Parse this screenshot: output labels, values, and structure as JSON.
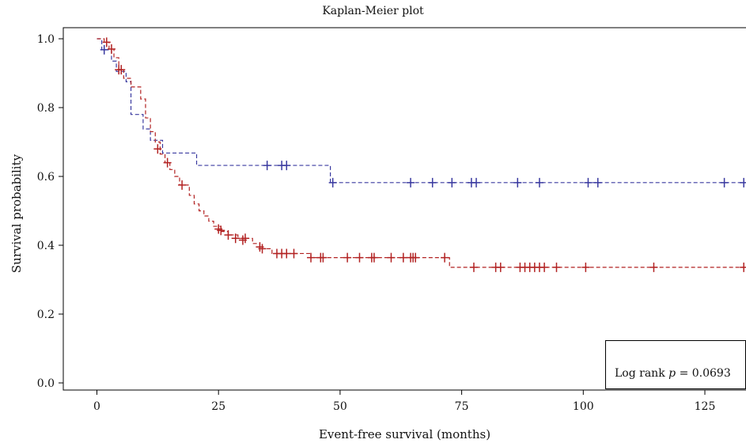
{
  "chart_data": {
    "type": "line",
    "title": "Kaplan-Meier plot",
    "xlabel": "Event-free survival (months)",
    "ylabel": "Survival probability",
    "xlim": [
      -5,
      133
    ],
    "ylim": [
      -0.02,
      1.03
    ],
    "x_ticks": [
      0,
      25,
      50,
      75,
      100,
      125
    ],
    "x_tick_labels": [
      "0",
      "25",
      "50",
      "75",
      "100",
      "125"
    ],
    "y_ticks": [
      0.0,
      0.2,
      0.4,
      0.6,
      0.8,
      1.0
    ],
    "y_tick_labels": [
      "0.0",
      "0.2",
      "0.4",
      "0.6",
      "0.8",
      "1.0"
    ],
    "grid": false,
    "series": [
      {
        "color": "#3a3aa0",
        "line_style": "dashed",
        "steps": [
          [
            0,
            1.0
          ],
          [
            1,
            0.968
          ],
          [
            3,
            0.935
          ],
          [
            4,
            0.905
          ],
          [
            6,
            0.875
          ],
          [
            7,
            0.78
          ],
          [
            9.5,
            0.738
          ],
          [
            11,
            0.705
          ],
          [
            13.5,
            0.668
          ],
          [
            20.5,
            0.632
          ],
          [
            48,
            0.582
          ],
          [
            133,
            0.582
          ]
        ],
        "censored": [
          [
            1.5,
            0.968
          ],
          [
            35,
            0.632
          ],
          [
            38,
            0.632
          ],
          [
            39,
            0.632
          ],
          [
            48.5,
            0.582
          ],
          [
            64.5,
            0.582
          ],
          [
            69,
            0.582
          ],
          [
            73,
            0.582
          ],
          [
            77,
            0.582
          ],
          [
            78,
            0.582
          ],
          [
            86.5,
            0.582
          ],
          [
            91,
            0.582
          ],
          [
            101,
            0.582
          ],
          [
            103,
            0.582
          ],
          [
            129,
            0.582
          ],
          [
            133,
            0.582
          ]
        ]
      },
      {
        "color": "#b22222",
        "line_style": "dashed",
        "steps": [
          [
            0,
            1.0
          ],
          [
            1.5,
            0.99
          ],
          [
            2.5,
            0.97
          ],
          [
            3.5,
            0.945
          ],
          [
            4.5,
            0.91
          ],
          [
            5.5,
            0.885
          ],
          [
            7,
            0.86
          ],
          [
            9,
            0.825
          ],
          [
            10,
            0.77
          ],
          [
            11,
            0.73
          ],
          [
            12,
            0.7
          ],
          [
            13,
            0.665
          ],
          [
            14,
            0.64
          ],
          [
            15,
            0.62
          ],
          [
            16,
            0.6
          ],
          [
            17,
            0.575
          ],
          [
            19,
            0.545
          ],
          [
            20,
            0.52
          ],
          [
            21,
            0.5
          ],
          [
            22,
            0.485
          ],
          [
            23,
            0.47
          ],
          [
            24,
            0.455
          ],
          [
            25.5,
            0.44
          ],
          [
            27,
            0.43
          ],
          [
            29,
            0.42
          ],
          [
            32,
            0.405
          ],
          [
            33.5,
            0.39
          ],
          [
            36,
            0.376
          ],
          [
            44,
            0.364
          ],
          [
            72.5,
            0.336
          ],
          [
            133,
            0.336
          ]
        ],
        "censored": [
          [
            2,
            0.99
          ],
          [
            3,
            0.97
          ],
          [
            4.5,
            0.91
          ],
          [
            5,
            0.91
          ],
          [
            12.5,
            0.68
          ],
          [
            14.5,
            0.64
          ],
          [
            17.5,
            0.575
          ],
          [
            25,
            0.447
          ],
          [
            25.5,
            0.443
          ],
          [
            27,
            0.43
          ],
          [
            28.5,
            0.42
          ],
          [
            30,
            0.415
          ],
          [
            30.5,
            0.42
          ],
          [
            33.5,
            0.395
          ],
          [
            34,
            0.39
          ],
          [
            37,
            0.376
          ],
          [
            38,
            0.376
          ],
          [
            39,
            0.376
          ],
          [
            40.5,
            0.376
          ],
          [
            44,
            0.364
          ],
          [
            46,
            0.364
          ],
          [
            46.5,
            0.364
          ],
          [
            51.5,
            0.364
          ],
          [
            54,
            0.364
          ],
          [
            56.5,
            0.364
          ],
          [
            57,
            0.364
          ],
          [
            60.5,
            0.364
          ],
          [
            63,
            0.364
          ],
          [
            64.5,
            0.364
          ],
          [
            65,
            0.364
          ],
          [
            65.5,
            0.364
          ],
          [
            71.5,
            0.364
          ],
          [
            77.5,
            0.336
          ],
          [
            82,
            0.336
          ],
          [
            83,
            0.336
          ],
          [
            87,
            0.336
          ],
          [
            88,
            0.336
          ],
          [
            89,
            0.336
          ],
          [
            90,
            0.336
          ],
          [
            91,
            0.336
          ],
          [
            92,
            0.336
          ],
          [
            94.5,
            0.336
          ],
          [
            100.5,
            0.336
          ],
          [
            114.5,
            0.336
          ],
          [
            133,
            0.336
          ]
        ]
      }
    ],
    "annotation": {
      "prefix": "Log rank",
      "p_symbol": "p",
      "suffix": "= 0.0693",
      "position": "bottom-right"
    }
  }
}
